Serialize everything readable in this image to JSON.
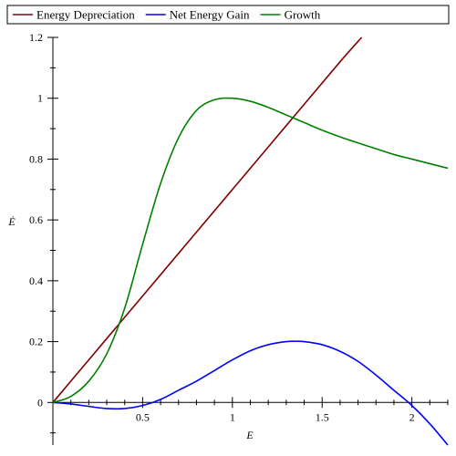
{
  "chart_data": {
    "type": "line",
    "title": "",
    "xlabel": "E",
    "ylabel": "Ė",
    "xlim": [
      0,
      2.2
    ],
    "ylim": [
      -0.14,
      1.2
    ],
    "x_ticks": [
      0.5,
      1,
      1.5,
      2
    ],
    "x_tick_labels": [
      "0.5",
      "1",
      "1.5",
      "2"
    ],
    "y_ticks": [
      0,
      0.2,
      0.4,
      0.6,
      0.8,
      1,
      1.2
    ],
    "y_tick_labels": [
      "0",
      "0.2",
      "0.4",
      "0.6",
      "0.8",
      "1",
      "1.2"
    ],
    "grid": false,
    "legend_position": "top",
    "series": [
      {
        "name": "Energy Depreciation",
        "color": "#800000",
        "x": [
          0,
          0.2,
          0.4,
          0.6,
          0.8,
          1.0,
          1.2,
          1.4,
          1.6,
          1.72
        ],
        "y": [
          0,
          0.14,
          0.28,
          0.42,
          0.56,
          0.7,
          0.84,
          0.98,
          1.12,
          1.2
        ]
      },
      {
        "name": "Net Energy Gain",
        "color": "#0000ff",
        "x": [
          0,
          0.1,
          0.2,
          0.3,
          0.4,
          0.5,
          0.6,
          0.7,
          0.8,
          0.9,
          1.0,
          1.1,
          1.2,
          1.3,
          1.35,
          1.4,
          1.5,
          1.6,
          1.7,
          1.8,
          1.9,
          2.0,
          2.1,
          2.2
        ],
        "y": [
          0,
          -0.005,
          -0.013,
          -0.02,
          -0.02,
          -0.01,
          0.01,
          0.04,
          0.07,
          0.105,
          0.14,
          0.17,
          0.19,
          0.2,
          0.201,
          0.2,
          0.19,
          0.168,
          0.135,
          0.09,
          0.04,
          -0.01,
          -0.07,
          -0.14
        ]
      },
      {
        "name": "Growth",
        "color": "#008000",
        "x": [
          0,
          0.1,
          0.2,
          0.3,
          0.4,
          0.5,
          0.6,
          0.7,
          0.8,
          0.9,
          1.0,
          1.1,
          1.2,
          1.3,
          1.4,
          1.5,
          1.6,
          1.7,
          1.8,
          1.9,
          2.0,
          2.1,
          2.2
        ],
        "y": [
          0,
          0.02,
          0.07,
          0.16,
          0.31,
          0.52,
          0.72,
          0.87,
          0.96,
          0.995,
          1.0,
          0.99,
          0.97,
          0.945,
          0.92,
          0.895,
          0.873,
          0.853,
          0.834,
          0.815,
          0.8,
          0.785,
          0.77
        ]
      }
    ]
  }
}
